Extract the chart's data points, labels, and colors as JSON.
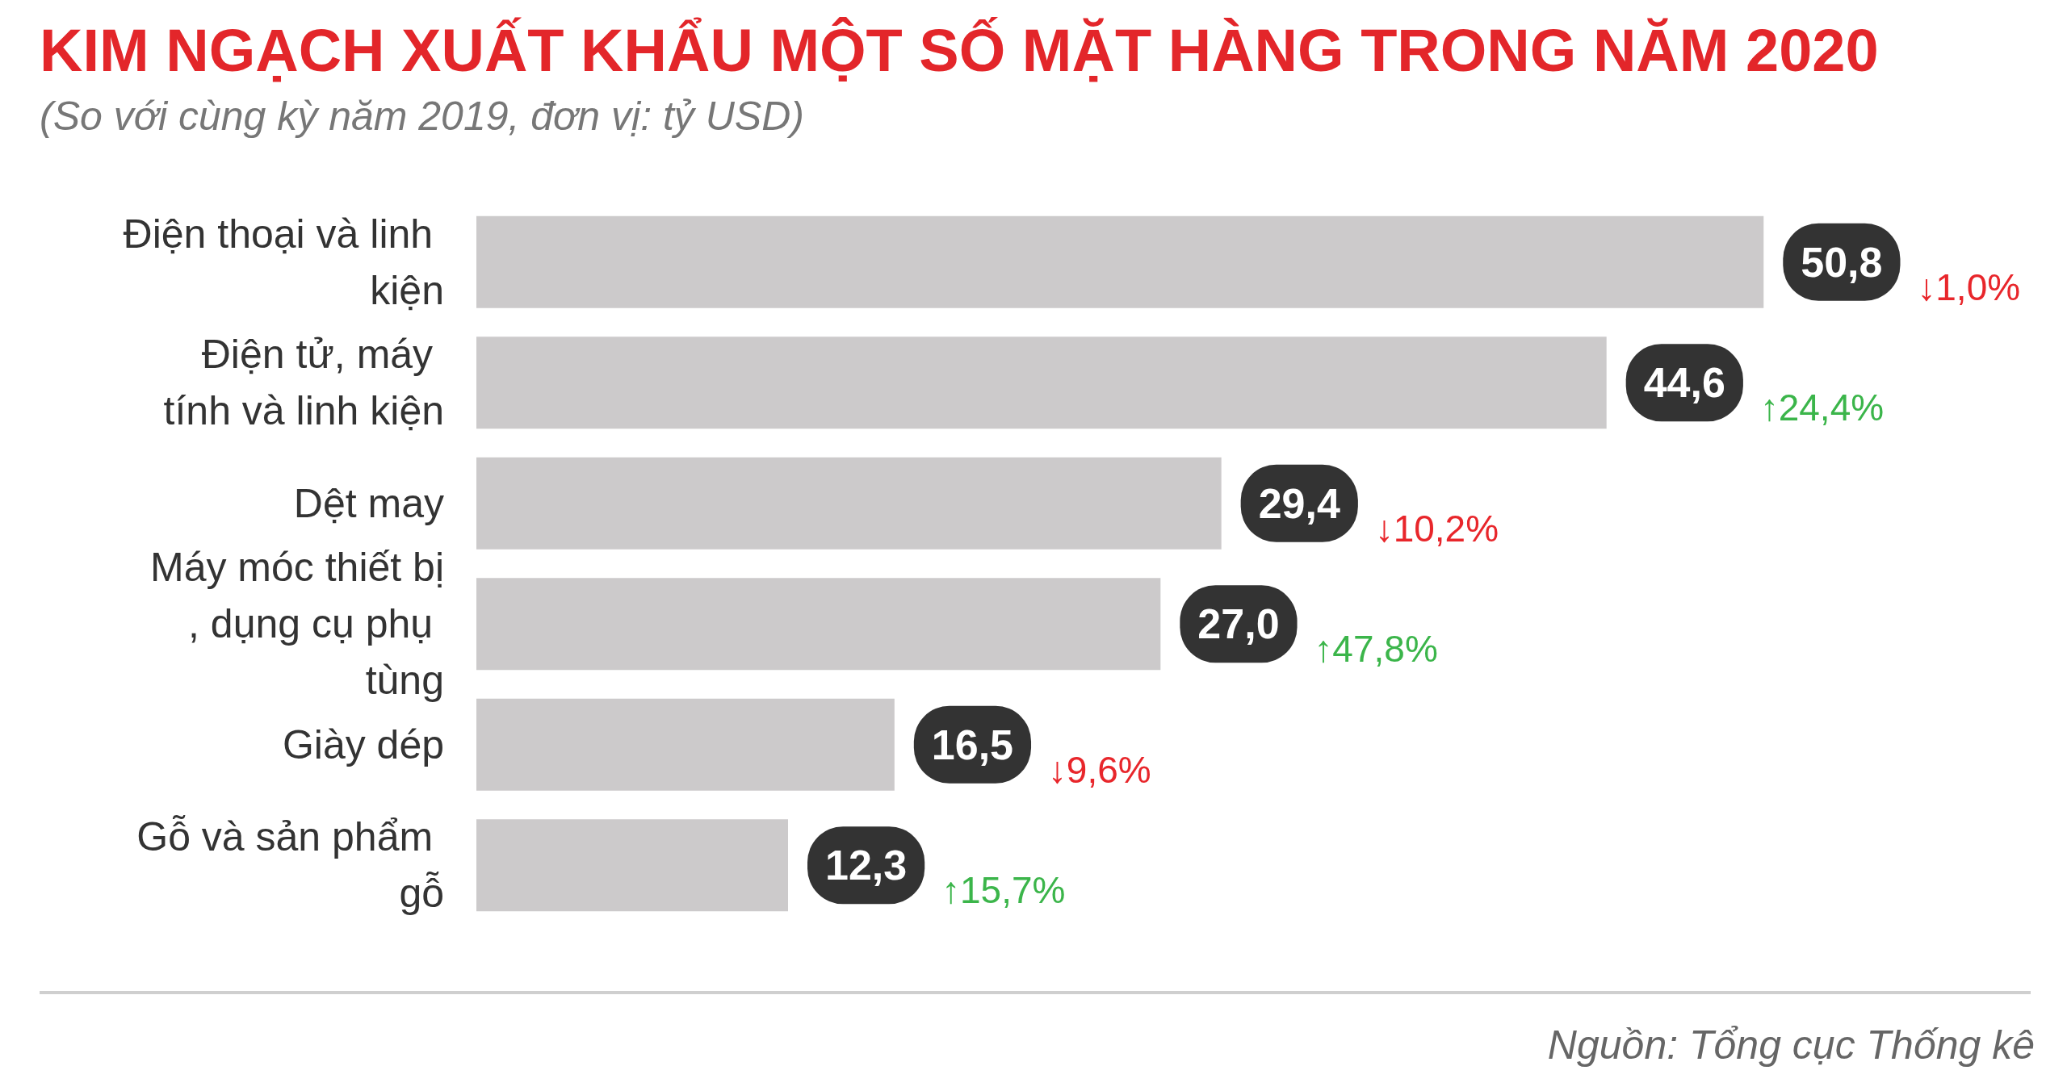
{
  "chart_data": {
    "type": "bar",
    "orientation": "horizontal",
    "title": "KIM NGẠCH XUẤT KHẨU MỘT SỐ MẶT HÀNG TRONG NĂM 2020",
    "subtitle": "(So với cùng kỳ năm 2019, đơn vị: tỷ USD)",
    "categories": [
      "Điện thoại và linh kiện",
      "Điện tử, máy tính và linh kiện",
      "Dệt may",
      "Máy móc thiết bị, dụng cụ phụ tùng",
      "Giày dép",
      "Gỗ và sản phẩm gỗ"
    ],
    "values": [
      50.8,
      44.6,
      29.4,
      27.0,
      16.5,
      12.3
    ],
    "value_labels": [
      "50,8",
      "44,6",
      "29,4",
      "27,0",
      "16,5",
      "12,3"
    ],
    "color": "#cccacb",
    "annotations": [
      "↓1,0%",
      "↑24,4%",
      "↓10,2%",
      "↑47,8%",
      "↓9,6%",
      "↑15,7%",
      "Nguồn: Tổng cục Thống kê"
    ]
  }
}
